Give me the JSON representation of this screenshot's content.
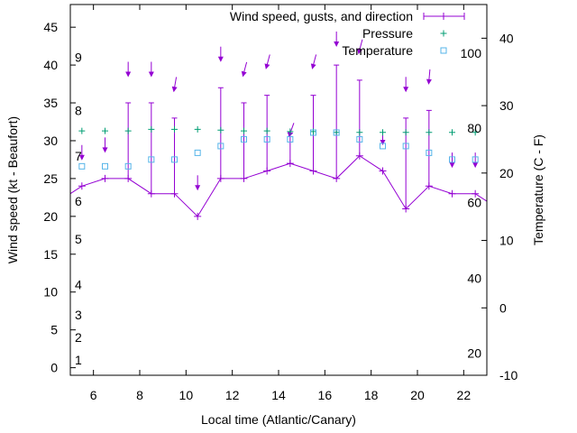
{
  "chart_data": {
    "type": "line",
    "xlabel": "Local time (Atlantic/Canary)",
    "ylabel_left": "Wind speed (kt - Beaufort)",
    "ylabel_right": "Temperature (C - F)",
    "xlim": [
      5,
      23
    ],
    "ylim_left": [
      -1,
      48
    ],
    "ylim_right": [
      -10,
      45
    ],
    "x_ticks": [
      6,
      8,
      10,
      12,
      14,
      16,
      18,
      20,
      22
    ],
    "y_ticks_left": [
      0,
      5,
      10,
      15,
      20,
      25,
      30,
      35,
      40,
      45
    ],
    "y_ticks_right": [
      -10,
      0,
      10,
      20,
      30,
      40
    ],
    "beaufort_labels": [
      {
        "label": "1",
        "kt": 1
      },
      {
        "label": "2",
        "kt": 4
      },
      {
        "label": "3",
        "kt": 7
      },
      {
        "label": "4",
        "kt": 11
      },
      {
        "label": "5",
        "kt": 17
      },
      {
        "label": "6",
        "kt": 22
      },
      {
        "label": "7",
        "kt": 28
      },
      {
        "label": "8",
        "kt": 34
      },
      {
        "label": "9",
        "kt": 41
      }
    ],
    "fahrenheit_labels": [
      {
        "label": "20",
        "c": -6.7
      },
      {
        "label": "40",
        "c": 4.4
      },
      {
        "label": "60",
        "c": 15.6
      },
      {
        "label": "80",
        "c": 26.7
      },
      {
        "label": "100",
        "c": 37.8
      }
    ],
    "legend": {
      "position": "top-right",
      "wind": "Wind speed, gusts, and direction",
      "pressure": "Pressure",
      "temperature": "Temperature"
    },
    "colors": {
      "wind": "#9400d3",
      "pressure": "#009e73",
      "temperature": "#56b4e9",
      "axes": "#000000"
    },
    "series": {
      "wind": {
        "x": [
          5,
          5.5,
          6.5,
          7.5,
          8.5,
          9.5,
          10.5,
          11.5,
          12.5,
          13.5,
          14.5,
          15.5,
          16.5,
          17.5,
          18.5,
          19.5,
          20.5,
          21.5,
          22.5,
          23
        ],
        "speed": [
          23,
          24,
          25,
          25,
          23,
          23,
          20,
          25,
          25,
          26,
          27,
          26,
          25,
          28,
          26,
          21,
          24,
          23,
          23,
          22
        ],
        "gust": [
          null,
          null,
          null,
          35,
          35,
          33,
          null,
          37,
          35,
          36,
          31,
          36,
          40,
          38,
          null,
          33,
          34,
          null,
          null,
          null
        ]
      },
      "direction": {
        "x": [
          5.5,
          6.5,
          7.5,
          8.5,
          9.5,
          10.5,
          11.5,
          12.5,
          13.5,
          14.5,
          15.5,
          16.5,
          17.5,
          18.5,
          19.5,
          20.5,
          21.5,
          22.5
        ],
        "kt": [
          28,
          29,
          39,
          39,
          37,
          24,
          41,
          39,
          40,
          31,
          40,
          43,
          42,
          30,
          37,
          38,
          27,
          27
        ],
        "angle_deg": [
          0,
          0,
          0,
          0,
          10,
          0,
          0,
          15,
          15,
          20,
          15,
          0,
          15,
          0,
          0,
          5,
          0,
          0
        ]
      },
      "pressure": {
        "x": [
          5.5,
          6.5,
          7.5,
          8.5,
          9.5,
          10.5,
          11.5,
          12.5,
          13.5,
          14.5,
          15.5,
          16.5,
          17.5,
          18.5,
          19.5,
          20.5,
          21.5,
          22.5
        ],
        "y": [
          31.3,
          31.3,
          31.3,
          31.5,
          31.5,
          31.5,
          31.4,
          31.3,
          31.3,
          31.2,
          31.2,
          31.1,
          31.1,
          31.1,
          31.1,
          31.1,
          31.1,
          31.1
        ]
      },
      "temperature": {
        "x": [
          5.5,
          6.5,
          7.5,
          8.5,
          9.5,
          10.5,
          11.5,
          12.5,
          13.5,
          14.5,
          15.5,
          16.5,
          17.5,
          18.5,
          19.5,
          20.5,
          21.5,
          22.5
        ],
        "c": [
          21,
          21,
          21,
          22,
          22,
          23,
          24,
          25,
          25,
          25,
          26,
          26,
          25,
          24,
          24,
          23,
          22,
          22
        ]
      }
    }
  }
}
